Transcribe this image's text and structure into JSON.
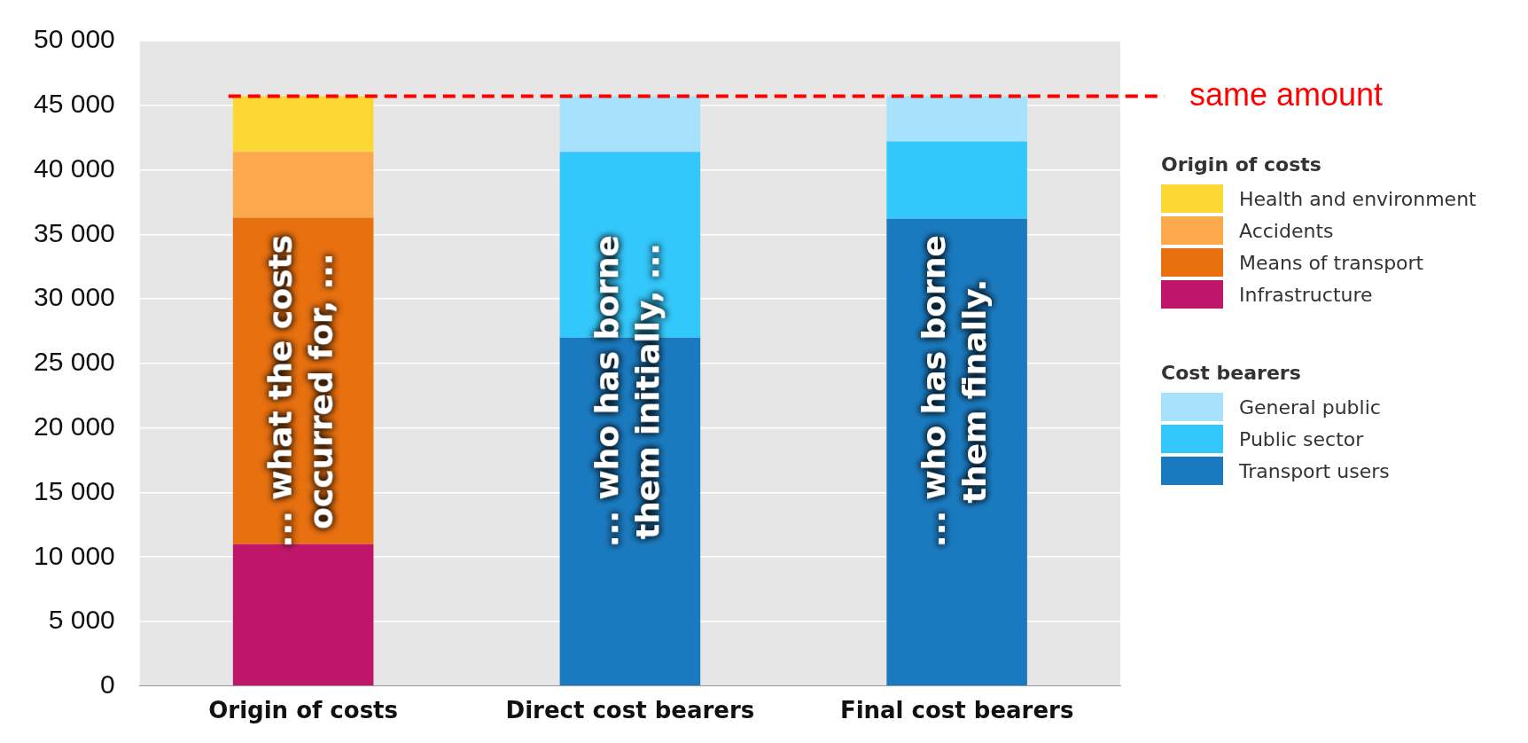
{
  "chart_data": {
    "type": "bar",
    "stacked": true,
    "categories": [
      "Origin of costs",
      "Direct cost bearers",
      "Final cost bearers"
    ],
    "series": [
      {
        "name": "Infrastructure",
        "color": "#c0166a",
        "values": [
          11000,
          null,
          null
        ]
      },
      {
        "name": "Means of transport",
        "color": "#e8700f",
        "values": [
          25300,
          null,
          null
        ]
      },
      {
        "name": "Accidents",
        "color": "#fba94c",
        "values": [
          5100,
          null,
          null
        ]
      },
      {
        "name": "Health and environment",
        "color": "#fdd835",
        "values": [
          4300,
          null,
          null
        ]
      },
      {
        "name": "Transport users",
        "color": "#1a7abf",
        "values": [
          null,
          27000,
          36200
        ]
      },
      {
        "name": "Public sector",
        "color": "#33c8fb",
        "values": [
          null,
          14400,
          6000
        ]
      },
      {
        "name": "General public",
        "color": "#a6e2fb",
        "values": [
          null,
          4300,
          3500
        ]
      }
    ],
    "ylim": [
      0,
      50000
    ],
    "yticks": [
      {
        "value": 0,
        "label": "0"
      },
      {
        "value": 5000,
        "label": "5 000"
      },
      {
        "value": 10000,
        "label": "10 000"
      },
      {
        "value": 15000,
        "label": "15 000"
      },
      {
        "value": 20000,
        "label": "20 000"
      },
      {
        "value": 25000,
        "label": "25 000"
      },
      {
        "value": 30000,
        "label": "30 000"
      },
      {
        "value": 35000,
        "label": "35 000"
      },
      {
        "value": 40000,
        "label": "40 000"
      },
      {
        "value": 45000,
        "label": "45 000"
      },
      {
        "value": 50000,
        "label": "50 000"
      }
    ],
    "grid": "y",
    "legend": "right",
    "legend_title": "Origin of costs",
    "ref_lines": [
      {
        "axis": "y",
        "value": 45700,
        "label": "same amount",
        "color": "#ff0000",
        "line_style": "dashed"
      }
    ],
    "annotations": [
      "Cost bearers",
      "... what the costs\noccurred for, ...",
      "... who has borne\nthem initially, ...",
      "... who has borne\nthem finally."
    ]
  }
}
